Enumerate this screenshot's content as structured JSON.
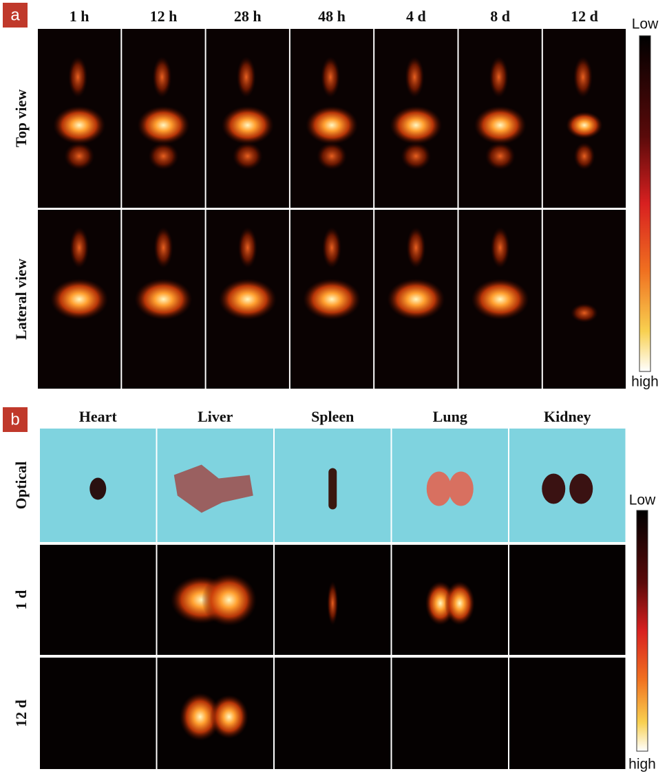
{
  "panel_a": {
    "label": "a",
    "columns": [
      "1 h",
      "12 h",
      "28 h",
      "48 h",
      "4 d",
      "8 d",
      "12 d"
    ],
    "rows": [
      "Top view",
      "Lateral view"
    ],
    "colorbar": {
      "top": "Low",
      "bottom": "high"
    }
  },
  "panel_b": {
    "label": "b",
    "columns": [
      "Heart",
      "Liver",
      "Spleen",
      "Lung",
      "Kidney"
    ],
    "rows": [
      "Optical",
      "1 d",
      "12 d"
    ],
    "colorbar": {
      "top": "Low",
      "bottom": "high"
    }
  }
}
